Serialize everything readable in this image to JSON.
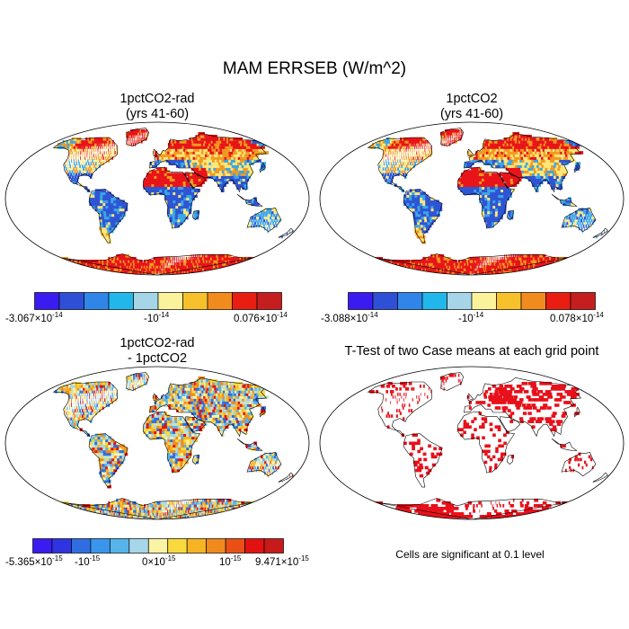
{
  "title": "MAM ERRSEB (W/m^2)",
  "panels": [
    {
      "id": "a",
      "title_line1": "1pctCO2-rad",
      "title_line2": "(yrs 41-60)",
      "style": "field"
    },
    {
      "id": "b",
      "title_line1": "1pctCO2",
      "title_line2": "(yrs 41-60)",
      "style": "field"
    },
    {
      "id": "c",
      "title_line1": "1pctCO2-rad",
      "title_line2": "- 1pctCO2",
      "style": "diff"
    },
    {
      "id": "d",
      "title_line1": "T-Test of two Case means at each grid point",
      "title_line2": "",
      "style": "ttest"
    }
  ],
  "colorbars": [
    {
      "colors": [
        "#3a1cf0",
        "#2e4fd6",
        "#2f86e8",
        "#22b7ea",
        "#a6d5e8",
        "#fbf39c",
        "#f7c12c",
        "#f28b1d",
        "#ea1d12",
        "#c51e1e"
      ],
      "labels": [
        {
          "mantissa": "-3.067×10",
          "exp": "-14"
        },
        {
          "mantissa": "-10",
          "exp": "-14"
        },
        {
          "mantissa": "0.076×10",
          "exp": "-14"
        }
      ]
    },
    {
      "colors": [
        "#3a1cf0",
        "#2e4fd6",
        "#2f86e8",
        "#22b7ea",
        "#a6d5e8",
        "#fbf39c",
        "#f7c12c",
        "#f28b1d",
        "#ea1d12",
        "#c51e1e"
      ],
      "labels": [
        {
          "mantissa": "-3.088×10",
          "exp": "-14"
        },
        {
          "mantissa": "-10",
          "exp": "-14"
        },
        {
          "mantissa": "0.078×10",
          "exp": "-14"
        }
      ]
    },
    {
      "colors": [
        "#3a1cf0",
        "#2e35e0",
        "#2f6ee0",
        "#3a95ec",
        "#56b4ea",
        "#a7d6ea",
        "#fbf3a4",
        "#f9d93e",
        "#f6b425",
        "#f08a1c",
        "#ea5015",
        "#e31212",
        "#c81a1a"
      ],
      "labels": [
        {
          "mantissa": "-5.365×10",
          "exp": "-15"
        },
        {
          "mantissa": "-10",
          "exp": "-15"
        },
        {
          "mantissa": "0×10",
          "exp": "-15"
        },
        {
          "mantissa": "10",
          "exp": "-15"
        },
        {
          "mantissa": "9.471×10",
          "exp": "-15"
        }
      ]
    }
  ],
  "note": "Cells are significant at 0.1 level",
  "palette": {
    "blue": "#2f55d4",
    "sky": "#3aa6e6",
    "yellow": "#fbe77a",
    "orange": "#f39a20",
    "red": "#e8141a",
    "ttest_red": "#e8101a",
    "diff_neutral": "#c9e2c8"
  }
}
